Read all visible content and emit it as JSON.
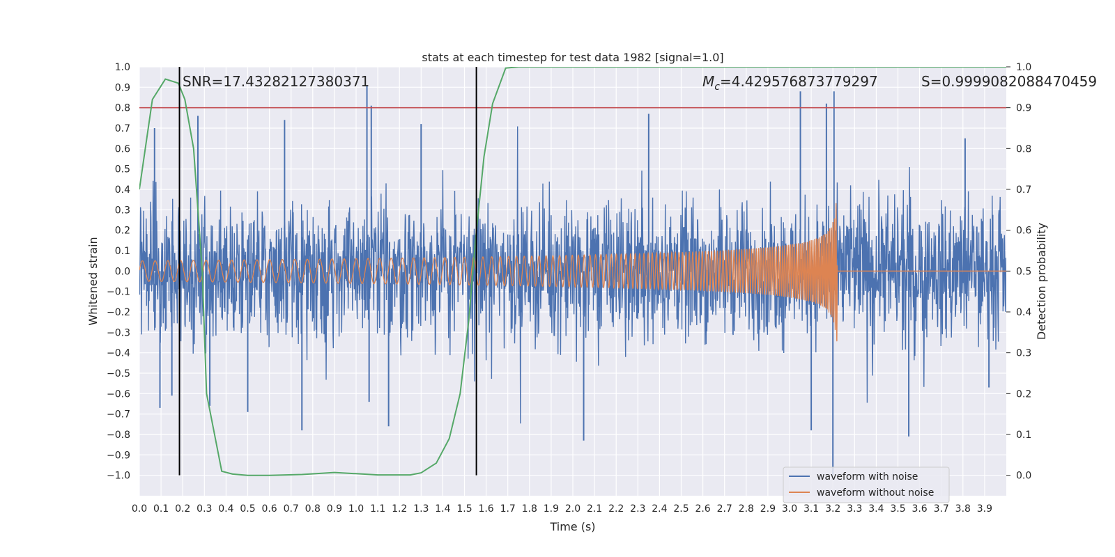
{
  "chart_data": {
    "type": "line",
    "title": "stats at each timestep for test data 1982 [signal=1.0]",
    "xlabel": "Time (s)",
    "ylabel": "Whitened strain",
    "y2label": "Detection probability",
    "xlim": [
      0.0,
      4.0
    ],
    "ylim": [
      -1.1,
      1.0
    ],
    "y2lim": [
      -0.05,
      1.0
    ],
    "grid": true,
    "legend_position": "lower-right",
    "xticks": [
      "0.0",
      "0.1",
      "0.2",
      "0.3",
      "0.4",
      "0.5",
      "0.6",
      "0.7",
      "0.8",
      "0.9",
      "1.0",
      "1.1",
      "1.2",
      "1.3",
      "1.4",
      "1.5",
      "1.6",
      "1.7",
      "1.8",
      "1.9",
      "2.0",
      "2.1",
      "2.2",
      "2.3",
      "2.4",
      "2.5",
      "2.6",
      "2.7",
      "2.8",
      "2.9",
      "3.0",
      "3.1",
      "3.2",
      "3.3",
      "3.4",
      "3.5",
      "3.6",
      "3.7",
      "3.8",
      "3.9"
    ],
    "yticks": [
      "1.0",
      "0.9",
      "0.8",
      "0.7",
      "0.6",
      "0.5",
      "0.4",
      "0.3",
      "0.2",
      "0.1",
      "0.0",
      "−0.1",
      "−0.2",
      "−0.3",
      "−0.4",
      "−0.5",
      "−0.6",
      "−0.7",
      "−0.8",
      "−0.9",
      "−1.0"
    ],
    "y2ticks": [
      "1.0",
      "0.9",
      "0.8",
      "0.7",
      "0.6",
      "0.5",
      "0.4",
      "0.3",
      "0.2",
      "0.1",
      "0.0"
    ],
    "annotations": {
      "snr": "SNR=17.43282127380371",
      "mc_symbol": "M",
      "mc_sub": "c",
      "mc_value": "=4.429576873779297",
      "s": "S=0.9999082088470459"
    },
    "threshold": {
      "axis": "right",
      "value": 0.9,
      "color": "#c44e52"
    },
    "vlines": [
      0.185,
      1.555
    ],
    "series": [
      {
        "name": "waveform with noise",
        "axis": "left",
        "color": "#4c72b0",
        "kind": "noise",
        "amplitude": 0.26,
        "spikes": [
          [
            0.07,
            0.7
          ],
          [
            0.095,
            -0.67
          ],
          [
            0.15,
            -0.61
          ],
          [
            0.27,
            0.76
          ],
          [
            0.325,
            -0.66
          ],
          [
            0.5,
            -0.69
          ],
          [
            0.67,
            0.74
          ],
          [
            0.75,
            -0.78
          ],
          [
            1.05,
            0.91
          ],
          [
            1.06,
            -0.64
          ],
          [
            1.07,
            0.81
          ],
          [
            1.15,
            -0.76
          ],
          [
            1.3,
            0.72
          ],
          [
            2.05,
            -0.83
          ],
          [
            2.35,
            0.77
          ],
          [
            3.05,
            0.88
          ],
          [
            3.1,
            -0.78
          ],
          [
            3.17,
            0.82
          ],
          [
            3.2,
            -1.0
          ],
          [
            3.205,
            0.88
          ],
          [
            3.55,
            -0.81
          ],
          [
            3.81,
            0.65
          ],
          [
            3.92,
            -0.57
          ]
        ]
      },
      {
        "name": "waveform without noise",
        "axis": "left",
        "color": "#dd8452",
        "kind": "chirp",
        "t_merge": 3.22,
        "f0": 17,
        "f1": 140,
        "a0": 0.05,
        "a_peak": 0.38
      },
      {
        "name": "",
        "axis": "right",
        "color": "#55a868",
        "kind": "line",
        "x": [
          0.0,
          0.06,
          0.12,
          0.18,
          0.21,
          0.25,
          0.29,
          0.31,
          0.38,
          0.43,
          0.5,
          0.6,
          0.75,
          0.9,
          1.0,
          1.1,
          1.25,
          1.3,
          1.37,
          1.43,
          1.48,
          1.52,
          1.55,
          1.59,
          1.63,
          1.69,
          1.75,
          2.0,
          2.5,
          3.0,
          3.5,
          4.0
        ],
        "y": [
          0.7,
          0.92,
          0.97,
          0.96,
          0.92,
          0.8,
          0.5,
          0.2,
          0.01,
          0.003,
          0.0,
          0.0,
          0.002,
          0.007,
          0.004,
          0.001,
          0.001,
          0.006,
          0.03,
          0.09,
          0.2,
          0.38,
          0.57,
          0.78,
          0.91,
          0.997,
          1.0,
          1.0,
          1.0,
          1.0,
          1.0,
          1.0
        ]
      }
    ]
  }
}
